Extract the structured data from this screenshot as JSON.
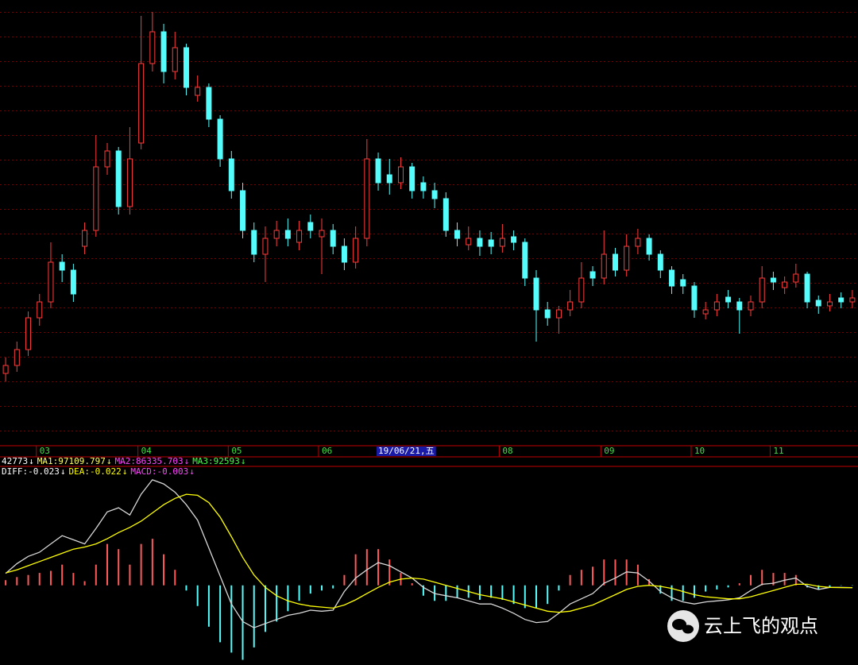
{
  "chart_data": [
    {
      "type": "candlestick",
      "categories": [
        null,
        null,
        null,
        "03",
        null,
        null,
        null,
        null,
        null,
        null,
        null,
        null,
        "04",
        null,
        null,
        null,
        null,
        null,
        null,
        null,
        "05",
        null,
        null,
        null,
        null,
        null,
        null,
        null,
        "06",
        null,
        null,
        null,
        null,
        "19/06/21,五",
        null,
        null,
        null,
        null,
        null,
        null,
        null,
        null,
        null,
        null,
        "08",
        null,
        null,
        null,
        null,
        null,
        null,
        null,
        null,
        "09",
        null,
        null,
        null,
        null,
        null,
        null,
        null,
        "10",
        null,
        null,
        null,
        null,
        null,
        null,
        "11",
        null,
        null,
        null,
        null,
        null,
        null,
        null
      ],
      "highlight_category": 33,
      "open": [
        90,
        100,
        120,
        160,
        180,
        230,
        220,
        250,
        270,
        350,
        370,
        300,
        380,
        480,
        520,
        470,
        500,
        440,
        450,
        410,
        360,
        320,
        270,
        240,
        260,
        270,
        255,
        280,
        262,
        270,
        250,
        230,
        260,
        360,
        340,
        330,
        350,
        330,
        320,
        310,
        270,
        252,
        260,
        258,
        250,
        262,
        255,
        210,
        170,
        160,
        170,
        180,
        218,
        210,
        240,
        220,
        250,
        260,
        240,
        220,
        208,
        200,
        165,
        170,
        186,
        180,
        170,
        180,
        210,
        198,
        205,
        215,
        182,
        175,
        185,
        180
      ],
      "high": [
        110,
        130,
        168,
        190,
        255,
        240,
        228,
        280,
        390,
        380,
        375,
        400,
        540,
        545,
        530,
        520,
        505,
        465,
        455,
        415,
        370,
        330,
        280,
        275,
        282,
        285,
        282,
        290,
        285,
        278,
        260,
        275,
        385,
        368,
        360,
        362,
        355,
        338,
        330,
        318,
        280,
        275,
        270,
        268,
        278,
        270,
        260,
        220,
        180,
        175,
        195,
        230,
        225,
        270,
        248,
        265,
        272,
        265,
        245,
        225,
        215,
        205,
        180,
        190,
        195,
        185,
        188,
        225,
        218,
        212,
        228,
        218,
        188,
        190,
        192,
        195
      ],
      "low": [
        80,
        92,
        112,
        150,
        172,
        205,
        180,
        240,
        262,
        340,
        290,
        290,
        372,
        470,
        455,
        460,
        440,
        432,
        400,
        350,
        310,
        260,
        230,
        205,
        250,
        250,
        245,
        260,
        215,
        240,
        220,
        222,
        250,
        320,
        315,
        322,
        310,
        310,
        298,
        262,
        250,
        245,
        238,
        240,
        242,
        245,
        200,
        130,
        150,
        140,
        162,
        172,
        200,
        202,
        212,
        212,
        240,
        232,
        210,
        190,
        190,
        160,
        158,
        162,
        172,
        140,
        162,
        172,
        195,
        190,
        198,
        172,
        165,
        168,
        172,
        172
      ],
      "close": [
        100,
        120,
        160,
        180,
        230,
        220,
        190,
        270,
        350,
        370,
        300,
        360,
        480,
        520,
        470,
        500,
        450,
        450,
        410,
        360,
        320,
        270,
        240,
        260,
        270,
        260,
        270,
        270,
        270,
        250,
        230,
        260,
        360,
        330,
        330,
        350,
        320,
        320,
        310,
        270,
        260,
        260,
        250,
        250,
        260,
        255,
        210,
        170,
        160,
        170,
        180,
        210,
        210,
        240,
        220,
        250,
        260,
        240,
        220,
        200,
        200,
        170,
        170,
        180,
        180,
        170,
        180,
        210,
        205,
        205,
        215,
        180,
        175,
        180,
        180,
        185
      ],
      "ylim": [
        0,
        560
      ],
      "up_color": "#ff3c3c",
      "down_color": "#54fcfc",
      "grid": true,
      "indicator_labels": [
        {
          "label": "42773",
          "arrow": "↓",
          "color": "#ffffff"
        },
        {
          "label": "MA1:97109.797",
          "arrow": "↓",
          "color": "#ffff66"
        },
        {
          "label": "MA2:86335.703",
          "arrow": "↓",
          "color": "#ff44ff"
        },
        {
          "label": "MA3:92593",
          "arrow": "↓",
          "color": "#44ff44"
        }
      ]
    },
    {
      "type": "macd",
      "ylim": [
        -0.77,
        1.05
      ],
      "legend": [
        {
          "label": "DIFF:-0.023",
          "arrow": "↓",
          "color": "#ffffff"
        },
        {
          "label": "DEA:-0.022",
          "arrow": "↓",
          "color": "#ffff00"
        },
        {
          "label": "MACD:-0.003",
          "arrow": "↓",
          "color": "#ff44ff"
        }
      ],
      "series": [
        {
          "color": "#d8d8d8",
          "values": [
            0.115,
            0.21,
            0.28,
            0.32,
            0.4,
            0.48,
            0.44,
            0.4,
            0.55,
            0.71,
            0.75,
            0.68,
            0.88,
            1.02,
            0.98,
            0.9,
            0.78,
            0.63,
            0.36,
            0.09,
            -0.18,
            -0.35,
            -0.41,
            -0.37,
            -0.33,
            -0.29,
            -0.27,
            -0.24,
            -0.25,
            -0.24,
            -0.06,
            0.07,
            0.15,
            0.22,
            0.19,
            0.13,
            0.07,
            -0.02,
            -0.08,
            -0.1,
            -0.12,
            -0.15,
            -0.18,
            -0.18,
            -0.22,
            -0.27,
            -0.33,
            -0.36,
            -0.35,
            -0.27,
            -0.18,
            -0.13,
            -0.08,
            0.02,
            0.07,
            0.13,
            0.12,
            0.04,
            -0.06,
            -0.12,
            -0.16,
            -0.18,
            -0.16,
            -0.15,
            -0.14,
            -0.12,
            -0.05,
            0.01,
            0.02,
            0.05,
            0.07,
            -0.01,
            -0.04,
            -0.02,
            -0.02,
            -0.023
          ]
        },
        {
          "color": "#ffff00",
          "values": [
            0.12,
            0.15,
            0.19,
            0.23,
            0.27,
            0.31,
            0.35,
            0.37,
            0.4,
            0.45,
            0.51,
            0.56,
            0.62,
            0.7,
            0.78,
            0.84,
            0.88,
            0.87,
            0.8,
            0.66,
            0.47,
            0.27,
            0.1,
            -0.02,
            -0.1,
            -0.15,
            -0.18,
            -0.2,
            -0.21,
            -0.22,
            -0.19,
            -0.14,
            -0.08,
            -0.02,
            0.03,
            0.06,
            0.07,
            0.06,
            0.03,
            0.0,
            -0.03,
            -0.06,
            -0.09,
            -0.11,
            -0.13,
            -0.16,
            -0.19,
            -0.22,
            -0.25,
            -0.26,
            -0.25,
            -0.22,
            -0.19,
            -0.14,
            -0.09,
            -0.04,
            -0.01,
            0.0,
            -0.01,
            -0.03,
            -0.06,
            -0.09,
            -0.11,
            -0.12,
            -0.13,
            -0.13,
            -0.11,
            -0.08,
            -0.05,
            -0.02,
            0.01,
            0.01,
            -0.01,
            -0.02,
            -0.022,
            -0.022
          ]
        },
        {
          "up_color": "#ff5a5a",
          "down_color": "#54fcfc",
          "values": [
            0.05,
            0.08,
            0.1,
            0.12,
            0.14,
            0.2,
            0.12,
            0.04,
            0.2,
            0.4,
            0.35,
            0.2,
            0.4,
            0.45,
            0.3,
            0.15,
            -0.05,
            -0.2,
            -0.4,
            -0.55,
            -0.65,
            -0.72,
            -0.6,
            -0.45,
            -0.35,
            -0.25,
            -0.15,
            -0.08,
            -0.05,
            -0.03,
            0.1,
            0.3,
            0.35,
            0.35,
            0.25,
            0.12,
            0.02,
            -0.1,
            -0.15,
            -0.15,
            -0.12,
            -0.12,
            -0.14,
            -0.12,
            -0.14,
            -0.18,
            -0.22,
            -0.22,
            -0.18,
            -0.05,
            0.1,
            0.15,
            0.18,
            0.25,
            0.25,
            0.25,
            0.2,
            0.06,
            -0.08,
            -0.15,
            -0.15,
            -0.12,
            -0.06,
            -0.04,
            -0.02,
            0.02,
            0.1,
            0.15,
            0.12,
            0.12,
            0.1,
            -0.02,
            -0.04,
            -0.02,
            -0.003,
            -0.003
          ]
        }
      ]
    }
  ],
  "watermark": "云上飞的观点"
}
